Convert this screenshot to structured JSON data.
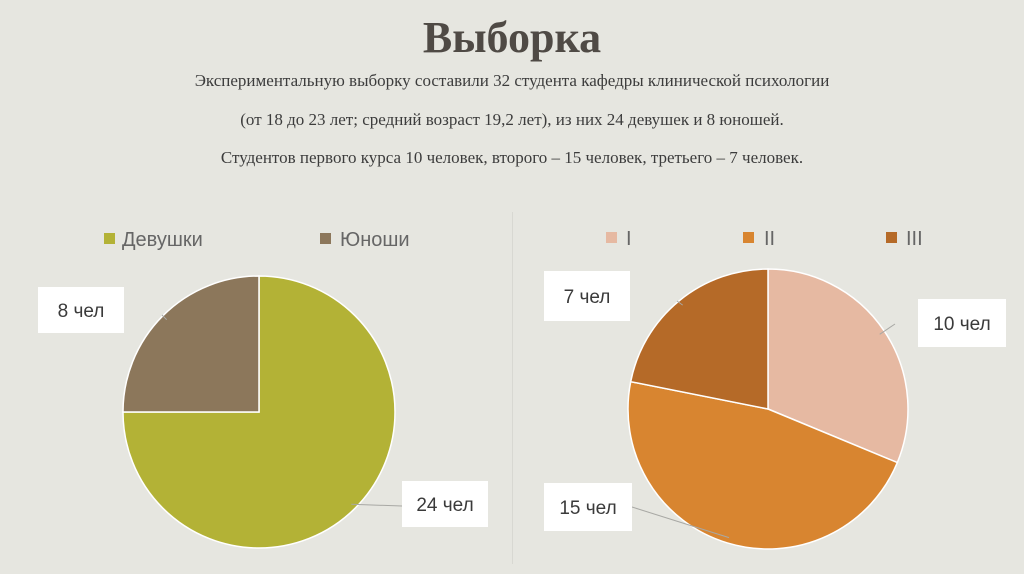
{
  "slide": {
    "title": "Выборка",
    "lines": [
      "Экспериментальную выборку составили 32 студента кафедры клинической психологии",
      "(от 18 до 23 лет; средний возраст 19,2 лет), из них 24 девушек и 8 юношей.",
      "Студентов первого курса 10 человек, второго – 15 человек, третьего – 7 человек."
    ]
  },
  "chart_data": [
    {
      "type": "pie",
      "categories": [
        "Девушки",
        "Юноши"
      ],
      "values": [
        24,
        8
      ],
      "data_labels": [
        "24 чел",
        "8 чел"
      ],
      "colors": [
        "#b3b236",
        "#8c775b"
      ],
      "legend": "top"
    },
    {
      "type": "pie",
      "categories": [
        "I",
        "II",
        "III"
      ],
      "values": [
        10,
        15,
        7
      ],
      "data_labels": [
        "10 чел",
        "15 чел",
        "7 чел"
      ],
      "colors": [
        "#e6b9a2",
        "#d88530",
        "#b56a28"
      ],
      "legend": "top"
    }
  ]
}
